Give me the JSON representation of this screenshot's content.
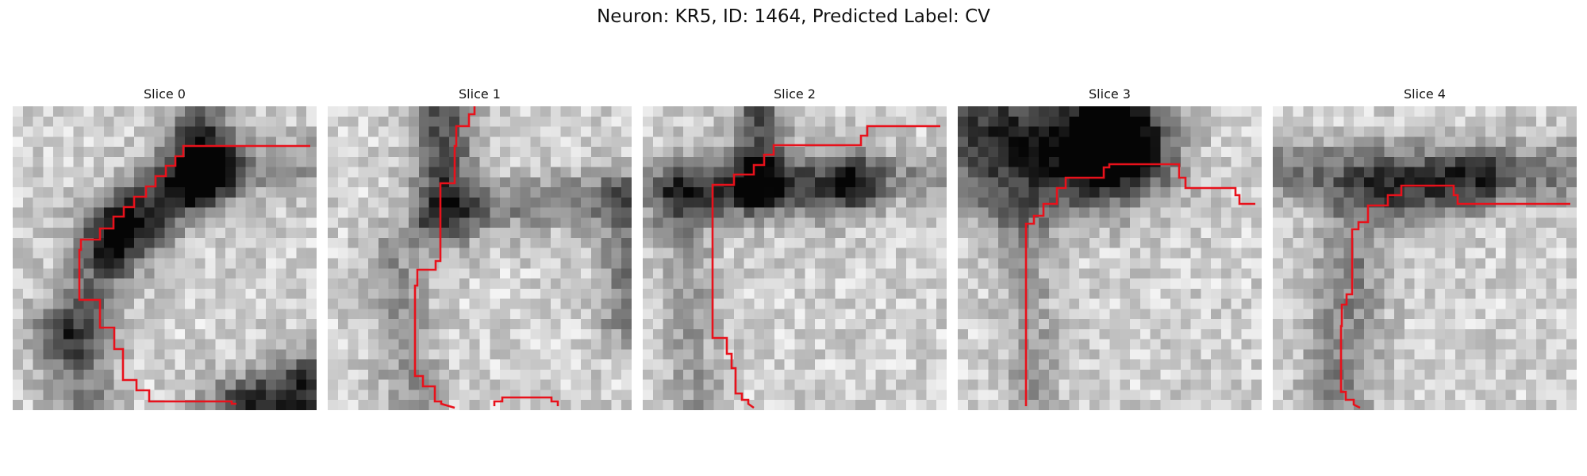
{
  "figure": {
    "title": "Neuron: KR5, ID: 1464, Predicted Label: CV",
    "panels": [
      {
        "title": "Slice 0"
      },
      {
        "title": "Slice 1"
      },
      {
        "title": "Slice 2"
      },
      {
        "title": "Slice 3"
      },
      {
        "title": "Slice 4"
      }
    ],
    "contour_color": "#e8111b",
    "colormap": "grayscale"
  }
}
